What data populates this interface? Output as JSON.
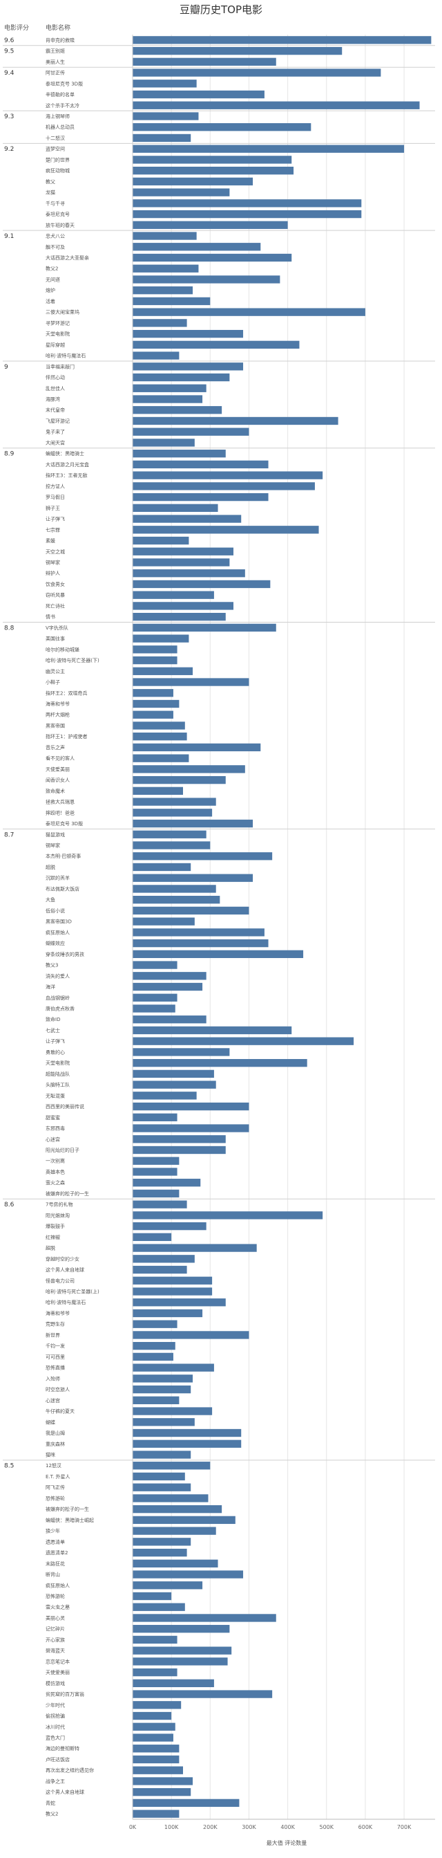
{
  "chart_data": {
    "type": "bar",
    "orientation": "horizontal",
    "title": "豆瓣历史TOP电影",
    "row_header_score": "电影评分",
    "row_header_name": "电影名称",
    "xlabel": "最大值 评论数量",
    "xlim": [
      0,
      780000
    ],
    "xticks": [
      0,
      100000,
      200000,
      300000,
      400000,
      500000,
      600000,
      700000
    ],
    "xtick_labels": [
      "0K",
      "100K",
      "200K",
      "300K",
      "400K",
      "500K",
      "600K",
      "700K"
    ],
    "grid": true,
    "bar_color": "#4e79a7",
    "groups": [
      {
        "score": "9.6",
        "items": [
          {
            "name": "肖申克的救赎",
            "value": 770000
          }
        ]
      },
      {
        "score": "9.5",
        "items": [
          {
            "name": "霸王别姬",
            "value": 540000
          },
          {
            "name": "美丽人生",
            "value": 370000
          }
        ]
      },
      {
        "score": "9.4",
        "items": [
          {
            "name": "阿甘正传",
            "value": 640000
          },
          {
            "name": "泰坦尼克号 3D版",
            "value": 165000
          },
          {
            "name": "辛德勒的名单",
            "value": 340000
          },
          {
            "name": "这个杀手不太冷",
            "value": 740000
          }
        ]
      },
      {
        "score": "9.3",
        "items": [
          {
            "name": "海上钢琴师",
            "value": 170000
          },
          {
            "name": "机器人总动员",
            "value": 460000
          },
          {
            "name": "十二怒汉",
            "value": 150000
          }
        ]
      },
      {
        "score": "9.2",
        "items": [
          {
            "name": "盗梦空间",
            "value": 700000
          },
          {
            "name": "楚门的世界",
            "value": 410000
          },
          {
            "name": "疯狂动物城",
            "value": 415000
          },
          {
            "name": "教父",
            "value": 310000
          },
          {
            "name": "龙猫",
            "value": 250000
          },
          {
            "name": "千与千寻",
            "value": 590000
          },
          {
            "name": "泰坦尼克号",
            "value": 590000
          },
          {
            "name": "放牛班的春天",
            "value": 400000
          }
        ]
      },
      {
        "score": "9.1",
        "items": [
          {
            "name": "忠犬八公",
            "value": 165000
          },
          {
            "name": "触不可及",
            "value": 330000
          },
          {
            "name": "大话西游之大圣娶亲",
            "value": 410000
          },
          {
            "name": "教父2",
            "value": 170000
          },
          {
            "name": "无间道",
            "value": 380000
          },
          {
            "name": "熔炉",
            "value": 155000
          },
          {
            "name": "活着",
            "value": 200000
          },
          {
            "name": "三傻大闹宝莱坞",
            "value": 600000
          },
          {
            "name": "寻梦环游记",
            "value": 140000
          },
          {
            "name": "天堂电影院",
            "value": 285000
          },
          {
            "name": "星际穿越",
            "value": 430000
          },
          {
            "name": "哈利·波特与魔法石",
            "value": 120000
          }
        ]
      },
      {
        "score": "9",
        "items": [
          {
            "name": "当幸福来敲门",
            "value": 285000
          },
          {
            "name": "怦然心动",
            "value": 250000
          },
          {
            "name": "乱世佳人",
            "value": 190000
          },
          {
            "name": "海豚湾",
            "value": 180000
          },
          {
            "name": "末代皇帝",
            "value": 230000
          },
          {
            "name": "飞屋环游记",
            "value": 530000
          },
          {
            "name": "鬼子来了",
            "value": 300000
          },
          {
            "name": "大闹天宫",
            "value": 160000
          }
        ]
      },
      {
        "score": "8.9",
        "items": [
          {
            "name": "蝙蝠侠：黑暗骑士",
            "value": 240000
          },
          {
            "name": "大话西游之月光宝盒",
            "value": 350000
          },
          {
            "name": "指环王3：王者无敌",
            "value": 490000
          },
          {
            "name": "控方证人",
            "value": 470000
          },
          {
            "name": "罗马假日",
            "value": 350000
          },
          {
            "name": "狮子王",
            "value": 220000
          },
          {
            "name": "让子弹飞",
            "value": 280000
          },
          {
            "name": "七宗罪",
            "value": 480000
          },
          {
            "name": "素媛",
            "value": 145000
          },
          {
            "name": "天空之城",
            "value": 260000
          },
          {
            "name": "钢琴家",
            "value": 250000
          },
          {
            "name": "辩护人",
            "value": 290000
          },
          {
            "name": "饮食男女",
            "value": 355000
          },
          {
            "name": "窃听风暴",
            "value": 210000
          },
          {
            "name": "死亡诗社",
            "value": 260000
          },
          {
            "name": "情书",
            "value": 240000
          }
        ]
      },
      {
        "score": "8.8",
        "items": [
          {
            "name": "V字仇杀队",
            "value": 370000
          },
          {
            "name": "美国往事",
            "value": 145000
          },
          {
            "name": "哈尔的移动城堡",
            "value": 115000
          },
          {
            "name": "哈利·波特与死亡圣器(下)",
            "value": 115000
          },
          {
            "name": "幽灵公主",
            "value": 155000
          },
          {
            "name": "小鞋子",
            "value": 300000
          },
          {
            "name": "指环王2：双塔奇兵",
            "value": 105000
          },
          {
            "name": "海蒂和爷爷",
            "value": 120000
          },
          {
            "name": "两杆大烟枪",
            "value": 105000
          },
          {
            "name": "黑客帝国",
            "value": 135000
          },
          {
            "name": "指环王1：护戒使者",
            "value": 140000
          },
          {
            "name": "音乐之声",
            "value": 330000
          },
          {
            "name": "看不见的客人",
            "value": 145000
          },
          {
            "name": "天使爱美丽",
            "value": 290000
          },
          {
            "name": "闻香识女人",
            "value": 240000
          },
          {
            "name": "致命魔术",
            "value": 130000
          },
          {
            "name": "拯救大兵瑞恩",
            "value": 215000
          },
          {
            "name": "摔跤吧！爸爸",
            "value": 205000
          },
          {
            "name": "泰坦尼克号 3D版",
            "value": 310000
          }
        ]
      },
      {
        "score": "8.7",
        "items": [
          {
            "name": "猫鼠游戏",
            "value": 190000
          },
          {
            "name": "钢琴家",
            "value": 200000
          },
          {
            "name": "本杰明·巴顿奇事",
            "value": 360000
          },
          {
            "name": "超脱",
            "value": 150000
          },
          {
            "name": "沉默的羔羊",
            "value": 310000
          },
          {
            "name": "布达佩斯大饭店",
            "value": 215000
          },
          {
            "name": "大鱼",
            "value": 225000
          },
          {
            "name": "低俗小说",
            "value": 300000
          },
          {
            "name": "黑客帝国3D",
            "value": 160000
          },
          {
            "name": "疯狂原始人",
            "value": 340000
          },
          {
            "name": "蝴蝶效应",
            "value": 350000
          },
          {
            "name": "穿条纹睡衣的男孩",
            "value": 440000
          },
          {
            "name": "教父3",
            "value": 115000
          },
          {
            "name": "消失的爱人",
            "value": 190000
          },
          {
            "name": "海洋",
            "value": 180000
          },
          {
            "name": "血战钢锯岭",
            "value": 115000
          },
          {
            "name": "唐伯虎点秋香",
            "value": 110000
          },
          {
            "name": "致命ID",
            "value": 190000
          },
          {
            "name": "七武士",
            "value": 410000
          },
          {
            "name": "让子弹飞",
            "value": 570000
          },
          {
            "name": "勇敢的心",
            "value": 250000
          },
          {
            "name": "天堂电影院",
            "value": 450000
          },
          {
            "name": "超能陆战队",
            "value": 210000
          },
          {
            "name": "头脑特工队",
            "value": 215000
          },
          {
            "name": "无耻混蛋",
            "value": 165000
          },
          {
            "name": "西西里的美丽传说",
            "value": 300000
          },
          {
            "name": "甜蜜蜜",
            "value": 115000
          },
          {
            "name": "东邪西毒",
            "value": 300000
          },
          {
            "name": "心迷宫",
            "value": 240000
          },
          {
            "name": "阳光灿烂的日子",
            "value": 240000
          },
          {
            "name": "一次别离",
            "value": 120000
          },
          {
            "name": "英雄本色",
            "value": 115000
          },
          {
            "name": "萤火之森",
            "value": 175000
          },
          {
            "name": "被嫌弃的松子的一生",
            "value": 120000
          }
        ]
      },
      {
        "score": "8.6",
        "items": [
          {
            "name": "7号房的礼物",
            "value": 140000
          },
          {
            "name": "阳光姐妹淘",
            "value": 490000
          },
          {
            "name": "爆裂鼓手",
            "value": 190000
          },
          {
            "name": "红辣椒",
            "value": 100000
          },
          {
            "name": "超脱",
            "value": 320000
          },
          {
            "name": "穿越时空的少女",
            "value": 160000
          },
          {
            "name": "这个男人来自地球",
            "value": 140000
          },
          {
            "name": "怪兽电力公司",
            "value": 205000
          },
          {
            "name": "哈利·波特与死亡圣器(上)",
            "value": 205000
          },
          {
            "name": "哈利·波特与魔法石",
            "value": 240000
          },
          {
            "name": "海蒂和爷爷",
            "value": 180000
          },
          {
            "name": "荒野生存",
            "value": 115000
          },
          {
            "name": "新世界",
            "value": 300000
          },
          {
            "name": "千钧一发",
            "value": 110000
          },
          {
            "name": "可可西里",
            "value": 105000
          },
          {
            "name": "恐怖直播",
            "value": 210000
          },
          {
            "name": "入殓师",
            "value": 155000
          },
          {
            "name": "时空恋旅人",
            "value": 150000
          },
          {
            "name": "心迷宫",
            "value": 120000
          },
          {
            "name": "牛仔裤的夏天",
            "value": 205000
          },
          {
            "name": "蝴蝶",
            "value": 160000
          },
          {
            "name": "我是山姆",
            "value": 280000
          },
          {
            "name": "重庆森林",
            "value": 280000
          },
          {
            "name": "猫咪",
            "value": 150000
          }
        ]
      },
      {
        "score": "8.5",
        "items": [
          {
            "name": "12怒汉",
            "value": 200000
          },
          {
            "name": "E.T. 外星人",
            "value": 135000
          },
          {
            "name": "阿飞正传",
            "value": 150000
          },
          {
            "name": "恐怖游轮",
            "value": 195000
          },
          {
            "name": "被嫌弃的松子的一生",
            "value": 230000
          },
          {
            "name": "蝙蝠侠：黑暗骑士崛起",
            "value": 265000
          },
          {
            "name": "狼少年",
            "value": 215000
          },
          {
            "name": "遗愿清单",
            "value": 150000
          },
          {
            "name": "遗愿清单2",
            "value": 140000
          },
          {
            "name": "末路狂花",
            "value": 220000
          },
          {
            "name": "断背山",
            "value": 285000
          },
          {
            "name": "疯狂原始人",
            "value": 180000
          },
          {
            "name": "恐怖游轮",
            "value": 100000
          },
          {
            "name": "萤火虫之墓",
            "value": 135000
          },
          {
            "name": "美丽心灵",
            "value": 370000
          },
          {
            "name": "记忆碎片",
            "value": 250000
          },
          {
            "name": "开心家族",
            "value": 115000
          },
          {
            "name": "碧海蓝天",
            "value": 255000
          },
          {
            "name": "恋恋笔记本",
            "value": 245000
          },
          {
            "name": "天使爱美丽",
            "value": 115000
          },
          {
            "name": "模仿游戏",
            "value": 210000
          },
          {
            "name": "贫民窟的百万富翁",
            "value": 360000
          },
          {
            "name": "少年时代",
            "value": 125000
          },
          {
            "name": "偷拐抢骗",
            "value": 100000
          },
          {
            "name": "冰川时代",
            "value": 110000
          },
          {
            "name": "蓝色大门",
            "value": 105000
          },
          {
            "name": "海边的曼彻斯特",
            "value": 120000
          },
          {
            "name": "卢旺达饭店",
            "value": 120000
          },
          {
            "name": "再次出发之纽约遇见你",
            "value": 130000
          },
          {
            "name": "战争之王",
            "value": 155000
          },
          {
            "name": "这个男人来自地球",
            "value": 150000
          },
          {
            "name": "青蛇",
            "value": 275000
          },
          {
            "name": "教父2",
            "value": 120000
          }
        ]
      }
    ]
  }
}
